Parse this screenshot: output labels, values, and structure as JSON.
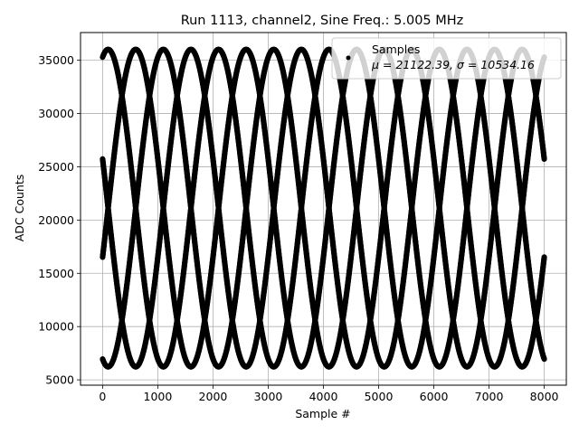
{
  "chart_data": {
    "type": "scatter",
    "title": "Run 1113, channel2, Sine Freq.: 5.005 MHz",
    "xlabel": "Sample #",
    "ylabel": "ADC Counts",
    "xlim": [
      -400,
      8400
    ],
    "ylim": [
      4500,
      37600
    ],
    "xticks": [
      0,
      1000,
      2000,
      3000,
      4000,
      5000,
      6000,
      7000,
      8000
    ],
    "yticks": [
      5000,
      10000,
      15000,
      20000,
      25000,
      30000,
      35000
    ],
    "grid": true,
    "legend": {
      "placement": "top-right",
      "entries": [
        {
          "name": "Samples",
          "stats": "μ = 21122.39, σ = 10534.16",
          "color": "#000000",
          "marker": "dot"
        }
      ]
    },
    "series": [
      {
        "name": "Samples",
        "color": "#000000",
        "model": {
          "description": "sinusoid sampled with aliasing; 8 interleaved phase branches",
          "mean": 21122.39,
          "amplitude": 14900,
          "period_samples": 2000,
          "x_range": [
            0,
            8000
          ],
          "phase_crests_at_x": [
            600,
            1100,
            1600,
            2100,
            2600,
            3100,
            3600,
            4100
          ]
        }
      }
    ]
  }
}
